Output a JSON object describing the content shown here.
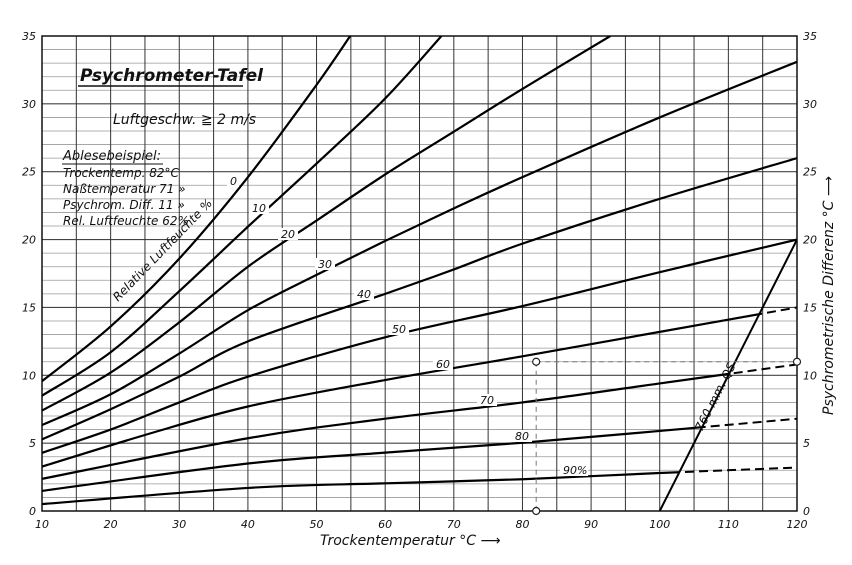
{
  "chart_data": {
    "type": "line",
    "title": "Psychrometer-Tafel",
    "subtitle": "Luftgeschw. ≧ 2 m/s",
    "xlabel": "Trockentemperatur °C ⟶",
    "ylabel": "Psychrometrische Differenz °C ⟶",
    "xlim": [
      10,
      120
    ],
    "ylim": [
      0,
      35
    ],
    "grid": true,
    "x_ticks": [
      "10",
      "20",
      "30",
      "40",
      "50",
      "60",
      "70",
      "80",
      "90",
      "100",
      "110",
      "120"
    ],
    "y_ticks": [
      "0",
      "5",
      "10",
      "15",
      "20",
      "25",
      "30",
      "35"
    ],
    "curve_family_label": "Relative Luftfeuchte %",
    "series": [
      {
        "name": "0",
        "label": "0",
        "points": [
          [
            10,
            9.57
          ],
          [
            20,
            13.6
          ],
          [
            30,
            18.6
          ],
          [
            40,
            24.6
          ],
          [
            50,
            31.4
          ],
          [
            54.9,
            35
          ]
        ]
      },
      {
        "name": "10",
        "label": "10",
        "points": [
          [
            10,
            8.5
          ],
          [
            20,
            11.7
          ],
          [
            30,
            16.2
          ],
          [
            40,
            20.95
          ],
          [
            50,
            25.6
          ],
          [
            60,
            30.4
          ],
          [
            68.2,
            35
          ]
        ]
      },
      {
        "name": "20",
        "label": "20",
        "points": [
          [
            10,
            7.4
          ],
          [
            20,
            10.2
          ],
          [
            30,
            13.9
          ],
          [
            40,
            18.0
          ],
          [
            50,
            21.4
          ],
          [
            60,
            24.8
          ],
          [
            70,
            27.95
          ],
          [
            80,
            31.1
          ],
          [
            92.8,
            35
          ]
        ]
      },
      {
        "name": "30",
        "label": "30",
        "points": [
          [
            10,
            6.33
          ],
          [
            20,
            8.6
          ],
          [
            30,
            11.6
          ],
          [
            40,
            14.8
          ],
          [
            50,
            17.4
          ],
          [
            60,
            19.9
          ],
          [
            70,
            22.3
          ],
          [
            80,
            24.6
          ],
          [
            100,
            29
          ],
          [
            120,
            33.1
          ]
        ]
      },
      {
        "name": "40",
        "label": "40",
        "points": [
          [
            10,
            5.28
          ],
          [
            20,
            7.5
          ],
          [
            30,
            9.9
          ],
          [
            40,
            12.5
          ],
          [
            60,
            16.0
          ],
          [
            70,
            17.8
          ],
          [
            80,
            19.7
          ],
          [
            100,
            23
          ],
          [
            120,
            26
          ]
        ]
      },
      {
        "name": "50",
        "label": "50",
        "points": [
          [
            10,
            4.29
          ],
          [
            20,
            6.0
          ],
          [
            30,
            8.0
          ],
          [
            40,
            9.9
          ],
          [
            60,
            12.8
          ],
          [
            80,
            15.1
          ],
          [
            100,
            17.6
          ],
          [
            120,
            20
          ]
        ]
      },
      {
        "name": "60",
        "label": "60",
        "points": [
          [
            10,
            3.27
          ],
          [
            25,
            5.6
          ],
          [
            40,
            7.7
          ],
          [
            60,
            9.65
          ],
          [
            80,
            11.4
          ],
          [
            100,
            13.2
          ],
          [
            120,
            15
          ]
        ]
      },
      {
        "name": "70",
        "label": "70",
        "points": [
          [
            10,
            2.37
          ],
          [
            40,
            5.36
          ],
          [
            60,
            6.8
          ],
          [
            80,
            8.0
          ],
          [
            100,
            9.4
          ],
          [
            120,
            10.8
          ]
        ]
      },
      {
        "name": "80",
        "label": "80",
        "points": [
          [
            10,
            1.48
          ],
          [
            40,
            3.5
          ],
          [
            60,
            4.3
          ],
          [
            80,
            5.03
          ],
          [
            100,
            5.9
          ],
          [
            120,
            6.8
          ]
        ]
      },
      {
        "name": "90",
        "label": "90%",
        "points": [
          [
            10,
            0.51
          ],
          [
            40,
            1.7
          ],
          [
            60,
            2.04
          ],
          [
            80,
            2.34
          ],
          [
            100,
            2.8
          ],
          [
            120,
            3.2
          ]
        ]
      }
    ],
    "boiling_line": {
      "label": "760 mm. QS",
      "points": [
        [
          100,
          0
        ],
        [
          120,
          20
        ]
      ]
    },
    "example_point": {
      "x": 82,
      "y": 11
    },
    "annotations": {
      "example_heading": "Ablesebeispiel:",
      "lines": [
        "Trockentemp.  82°C",
        "Naßtemperatur 71 »",
        "Psychrom. Diff.  11 »",
        "Rel. Luftfeuchte 62%"
      ]
    }
  }
}
